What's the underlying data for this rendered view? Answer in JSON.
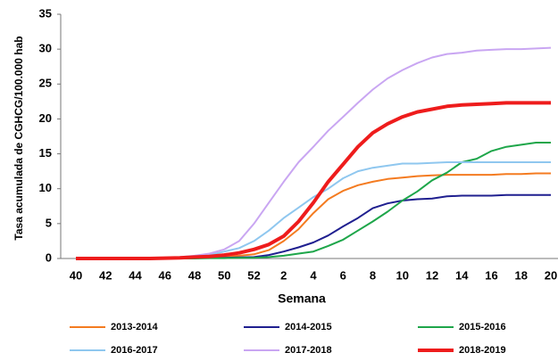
{
  "chart_data": {
    "type": "line",
    "x_label": "Semana",
    "y_label": "Tasa acumulada  de CGHCG/100.000 hab",
    "categories": [
      "40",
      null,
      "42",
      null,
      "44",
      null,
      "46",
      null,
      "48",
      null,
      "50",
      null,
      "52",
      null,
      "2",
      null,
      "4",
      null,
      "6",
      null,
      "8",
      null,
      "10",
      null,
      "12",
      null,
      "14",
      null,
      "16",
      null,
      "18",
      null,
      "20"
    ],
    "ylim": [
      0,
      35
    ],
    "yticks": [
      0,
      5,
      10,
      15,
      20,
      25,
      30,
      35
    ],
    "grid": false,
    "legend": "bottom",
    "series": [
      {
        "name": "2013-2014",
        "color": "#f47b20",
        "values": [
          0,
          0,
          0,
          0,
          0,
          0,
          0.05,
          0.1,
          0.15,
          0.2,
          0.3,
          0.4,
          0.6,
          1.2,
          2.5,
          4.2,
          6.5,
          8.5,
          9.7,
          10.5,
          11,
          11.4,
          11.6,
          11.8,
          11.9,
          12,
          12,
          12,
          12,
          12.1,
          12.1,
          12.2,
          12.2
        ]
      },
      {
        "name": "2014-2015",
        "color": "#1f1f8f",
        "values": [
          0,
          0,
          0,
          0,
          0,
          0,
          0,
          0.05,
          0.05,
          0.1,
          0.1,
          0.15,
          0.2,
          0.5,
          1,
          1.6,
          2.3,
          3.3,
          4.6,
          5.8,
          7.2,
          7.9,
          8.3,
          8.5,
          8.6,
          8.9,
          9,
          9,
          9,
          9.1,
          9.1,
          9.1,
          9.1
        ]
      },
      {
        "name": "2015-2016",
        "color": "#1ea64a",
        "values": [
          0,
          0,
          0,
          0,
          0,
          0,
          0,
          0,
          0,
          0.05,
          0.05,
          0.1,
          0.1,
          0.2,
          0.4,
          0.7,
          1,
          1.8,
          2.7,
          4,
          5.3,
          6.7,
          8.3,
          9.6,
          11.2,
          12.3,
          13.8,
          14.3,
          15.4,
          16,
          16.3,
          16.6,
          16.6
        ]
      },
      {
        "name": "2016-2017",
        "color": "#8fc7ef",
        "values": [
          0,
          0,
          0,
          0,
          0,
          0,
          0.05,
          0.1,
          0.2,
          0.5,
          1,
          1.5,
          2.5,
          4,
          5.8,
          7.3,
          8.8,
          10,
          11.5,
          12.5,
          13,
          13.3,
          13.6,
          13.6,
          13.7,
          13.8,
          13.8,
          13.8,
          13.8,
          13.8,
          13.8,
          13.8,
          13.8
        ]
      },
      {
        "name": "2017-2018",
        "color": "#c9a6f2",
        "values": [
          0,
          0,
          0,
          0,
          0,
          0.05,
          0.1,
          0.2,
          0.4,
          0.7,
          1.3,
          2.5,
          5,
          8,
          11,
          13.8,
          16,
          18.3,
          20.3,
          22.3,
          24.2,
          25.8,
          27,
          28,
          28.8,
          29.3,
          29.5,
          29.8,
          29.9,
          30,
          30,
          30.1,
          30.2
        ]
      },
      {
        "name": "2018-2019",
        "color": "#ee1c1c",
        "values": [
          0,
          0,
          0,
          0,
          0,
          0,
          0.05,
          0.1,
          0.2,
          0.3,
          0.5,
          0.8,
          1.3,
          2,
          3.2,
          5.3,
          8,
          11,
          13.5,
          16,
          18,
          19.3,
          20.3,
          21,
          21.4,
          21.8,
          22,
          22.1,
          22.2,
          22.3,
          22.3,
          22.3,
          22.3
        ]
      }
    ]
  }
}
